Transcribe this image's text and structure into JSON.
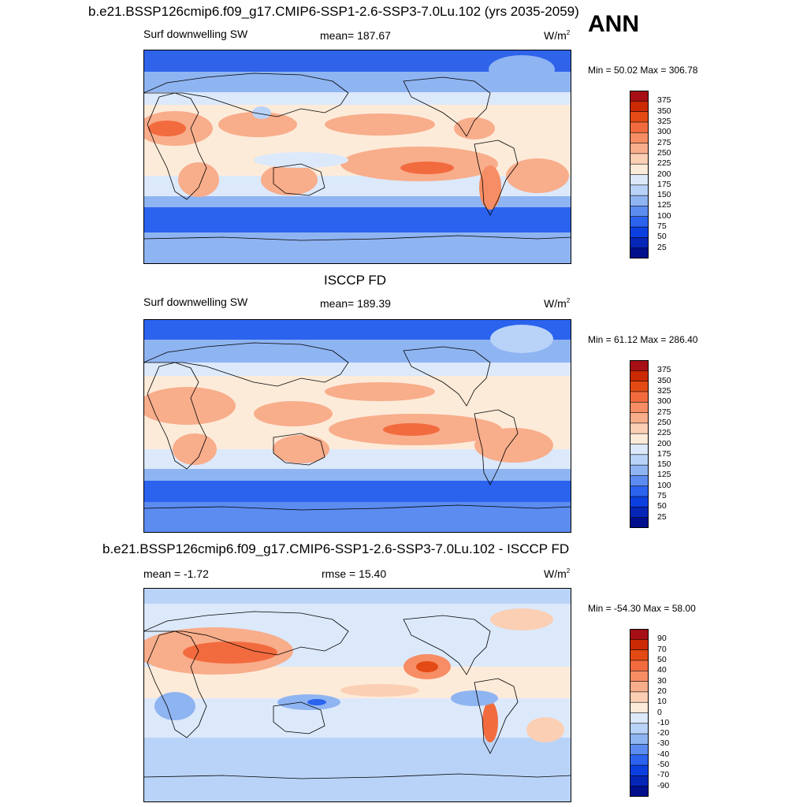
{
  "header": {
    "case_title": "b.e21.BSSP126cmip6.f09_g17.CMIP6-SSP1-2.6-SSP3-7.0Lu.102 (yrs 2035-2059)",
    "season": "ANN"
  },
  "panels": [
    {
      "id": "model",
      "title": "",
      "left_label": "Surf downwelling SW",
      "center_label": "mean= 187.67",
      "unit_base": "W/m",
      "unit_sup": "2",
      "minmax": "Min =  50.02 Max = 306.78",
      "colorbar_labels": [
        "375",
        "350",
        "325",
        "300",
        "275",
        "250",
        "225",
        "200",
        "175",
        "150",
        "125",
        "100",
        "75",
        "50",
        "25"
      ],
      "colorbar_colors": [
        "#a50f15",
        "#cb2a04",
        "#e34a14",
        "#f26b3f",
        "#f68d64",
        "#f8ad8b",
        "#fbcfb4",
        "#fdebd9",
        "#dce9fb",
        "#b9d3f8",
        "#8fb4f2",
        "#5c8cf0",
        "#2b63ef",
        "#0b3fe0",
        "#0626b8",
        "#000f8c"
      ]
    },
    {
      "id": "obs",
      "title": "ISCCP FD",
      "left_label": "Surf downwelling SW",
      "center_label": "mean= 189.39",
      "unit_base": "W/m",
      "unit_sup": "2",
      "minmax": "Min =  61.12 Max = 286.40",
      "colorbar_labels": [
        "375",
        "350",
        "325",
        "300",
        "275",
        "250",
        "225",
        "200",
        "175",
        "150",
        "125",
        "100",
        "75",
        "50",
        "25"
      ],
      "colorbar_colors": [
        "#a50f15",
        "#cb2a04",
        "#e34a14",
        "#f26b3f",
        "#f68d64",
        "#f8ad8b",
        "#fbcfb4",
        "#fdebd9",
        "#dce9fb",
        "#b9d3f8",
        "#8fb4f2",
        "#5c8cf0",
        "#2b63ef",
        "#0b3fe0",
        "#0626b8",
        "#000f8c"
      ]
    },
    {
      "id": "diff",
      "title": "b.e21.BSSP126cmip6.f09_g17.CMIP6-SSP1-2.6-SSP3-7.0Lu.102 - ISCCP FD",
      "left_label": "mean =  -1.72",
      "center_label": "rmse =  15.40",
      "unit_base": "W/m",
      "unit_sup": "2",
      "minmax": "Min = -54.30 Max =  58.00",
      "colorbar_labels": [
        "90",
        "70",
        "50",
        "40",
        "30",
        "20",
        "10",
        "0",
        "-10",
        "-20",
        "-30",
        "-40",
        "-50",
        "-70",
        "-90"
      ],
      "colorbar_colors": [
        "#a50f15",
        "#cb2a04",
        "#e34a14",
        "#f26b3f",
        "#f68d64",
        "#f8ad8b",
        "#fbcfb4",
        "#fdebd9",
        "#dce9fb",
        "#b9d3f8",
        "#8fb4f2",
        "#5c8cf0",
        "#2b63ef",
        "#0b3fe0",
        "#0626b8",
        "#000f8c"
      ]
    }
  ]
}
